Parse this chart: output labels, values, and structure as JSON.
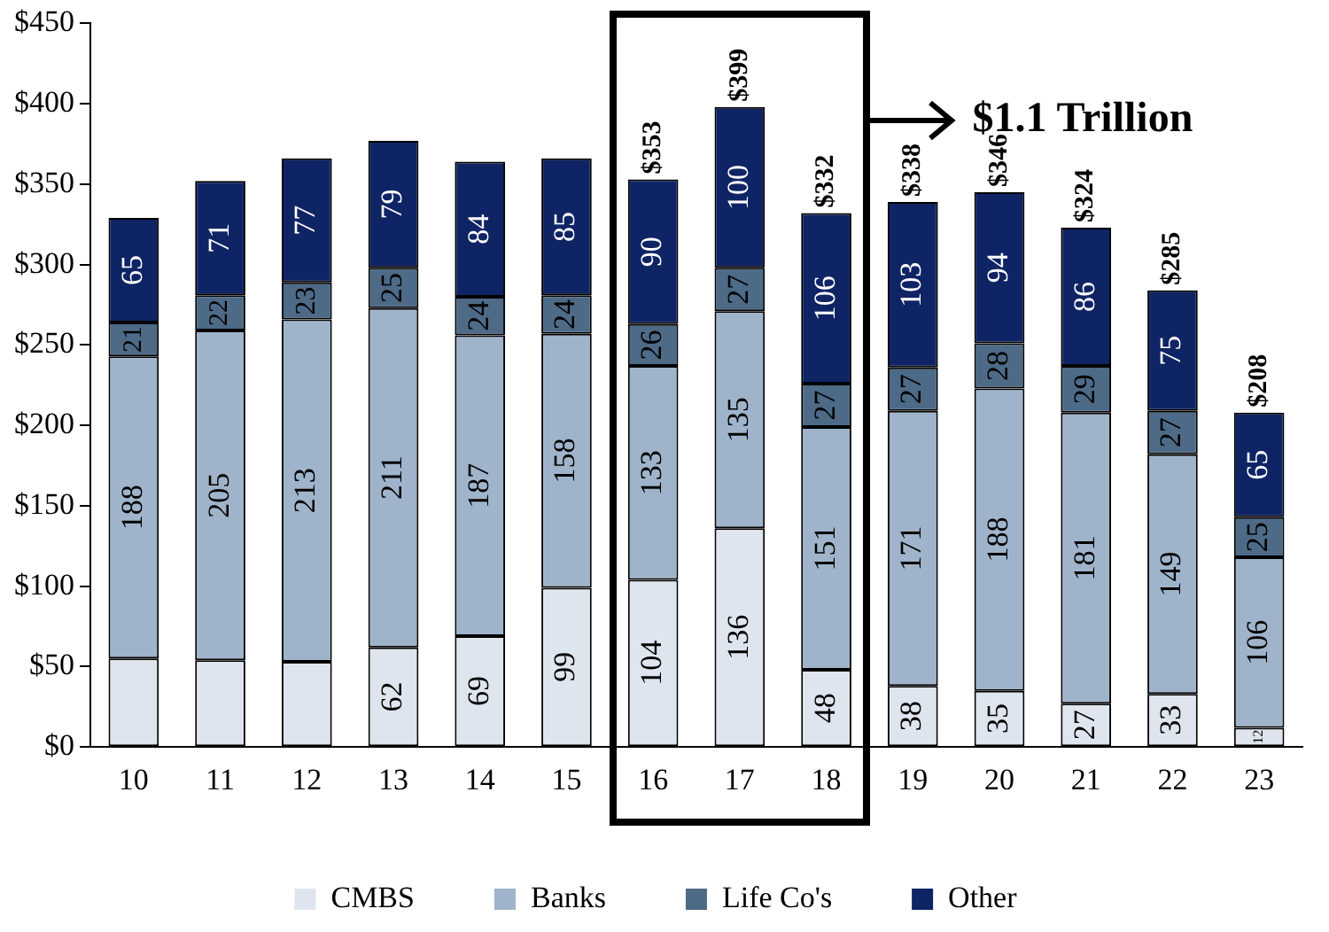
{
  "chart_data": {
    "type": "bar",
    "stacked": true,
    "categories": [
      "10",
      "11",
      "12",
      "13",
      "14",
      "15",
      "16",
      "17",
      "18",
      "19",
      "20",
      "21",
      "22",
      "23"
    ],
    "series": [
      {
        "name": "CMBS",
        "color": "#dfe5ee",
        "values": [
          55,
          54,
          53,
          62,
          69,
          99,
          104,
          136,
          48,
          38,
          35,
          27,
          33,
          12
        ],
        "value_labels": [
          null,
          null,
          null,
          "62",
          "69",
          "99",
          "104",
          "136",
          "48",
          "38",
          "35",
          "27",
          "33",
          "12"
        ]
      },
      {
        "name": "Banks",
        "color": "#9fb4ca",
        "values": [
          188,
          205,
          213,
          211,
          187,
          158,
          133,
          135,
          151,
          171,
          188,
          181,
          149,
          106
        ],
        "value_labels": [
          "188",
          "205",
          "213",
          "211",
          "187",
          "158",
          "133",
          "135",
          "151",
          "171",
          "188",
          "181",
          "149",
          "106"
        ]
      },
      {
        "name": "Life Co's",
        "color": "#4d6a87",
        "values": [
          21,
          22,
          23,
          25,
          24,
          24,
          26,
          27,
          27,
          27,
          28,
          29,
          27,
          25
        ],
        "value_labels": [
          "21",
          "22",
          "23",
          "25",
          "24",
          "24",
          "26",
          "27",
          "27",
          "27",
          "28",
          "29",
          "27",
          "25"
        ]
      },
      {
        "name": "Other",
        "color": "#0f2464",
        "values": [
          65,
          71,
          77,
          79,
          84,
          85,
          90,
          100,
          106,
          103,
          94,
          86,
          75,
          65
        ],
        "value_labels": [
          "65",
          "71",
          "77",
          "79",
          "84",
          "85",
          "90",
          "100",
          "106",
          "103",
          "94",
          "86",
          "75",
          "65"
        ]
      }
    ],
    "totals": [
      null,
      null,
      null,
      null,
      null,
      null,
      "$353",
      "$399",
      "$332",
      "$338",
      "$346",
      "$324",
      "$285",
      "$208"
    ],
    "ylim": [
      0,
      450
    ],
    "yticks": [
      {
        "value": 0,
        "label": "$0"
      },
      {
        "value": 50,
        "label": "$50"
      },
      {
        "value": 100,
        "label": "$100"
      },
      {
        "value": 150,
        "label": "$150"
      },
      {
        "value": 200,
        "label": "$200"
      },
      {
        "value": 250,
        "label": "$250"
      },
      {
        "value": 300,
        "label": "$300"
      },
      {
        "value": 350,
        "label": "$350"
      },
      {
        "value": 400,
        "label": "$400"
      },
      {
        "value": 450,
        "label": "$450"
      }
    ],
    "grid": false,
    "legend": "bottom",
    "annotations": [
      "$1.1 Trillion"
    ]
  }
}
